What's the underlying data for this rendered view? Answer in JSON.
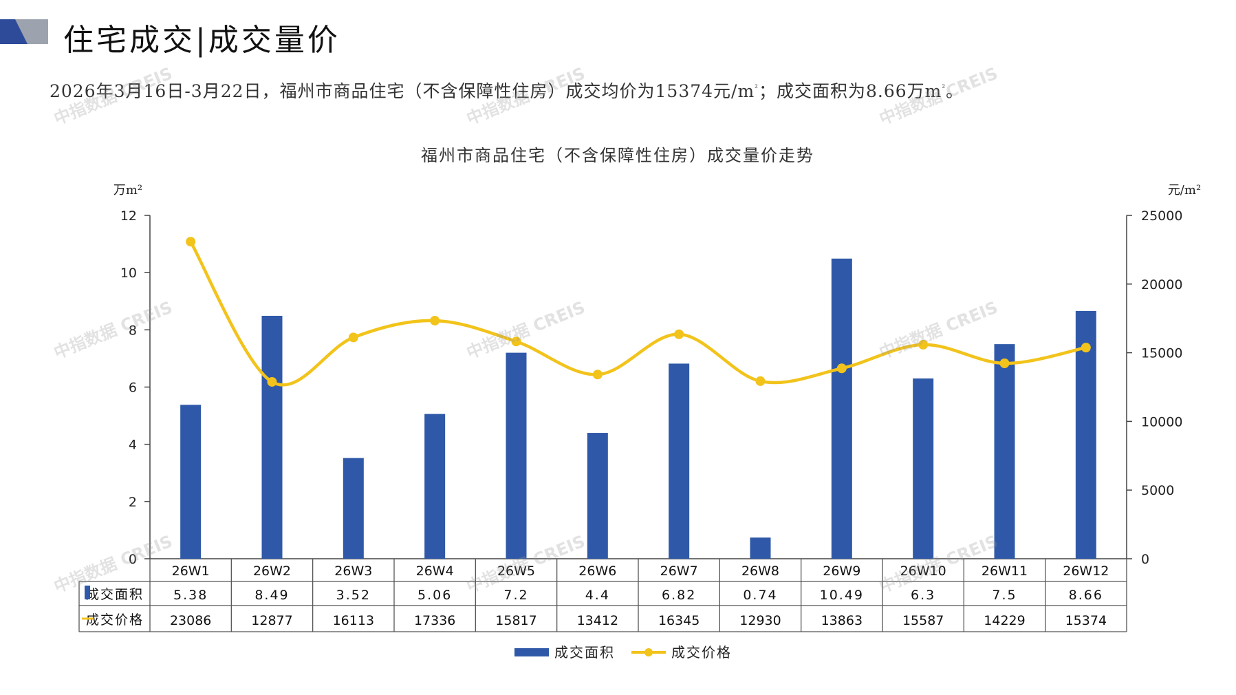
{
  "page": {
    "title": "住宅成交|成交量价",
    "summary": {
      "pre": "2026年3月16日-3月22日，福州市商品住宅（不含保障性住房）成交均价为15374元/m",
      "mid": "；成交面积为8.66万m",
      "post": "。",
      "sup": "²"
    },
    "watermark": "中指数据 CREIS"
  },
  "colors": {
    "bar": "#2F59A8",
    "line": "#F2C31B",
    "logo_dark": "#2E4B9A",
    "logo_gray": "#9DA3AE"
  },
  "chart_data": {
    "type": "bar",
    "title": "福州市商品住宅（不含保障性住房）成交量价走势",
    "categories": [
      "26W1",
      "26W2",
      "26W3",
      "26W4",
      "26W5",
      "26W6",
      "26W7",
      "26W8",
      "26W9",
      "26W10",
      "26W11",
      "26W12"
    ],
    "series": [
      {
        "name": "成交面积",
        "type": "bar",
        "axis": "left",
        "values": [
          5.38,
          8.49,
          3.52,
          5.06,
          7.2,
          4.4,
          6.82,
          0.74,
          10.49,
          6.3,
          7.5,
          8.66
        ],
        "labels": [
          "5.38",
          "8.49",
          "3.52",
          "5.06",
          "7.2",
          "4.4",
          "6.82",
          "0.74",
          "10.49",
          "6.3",
          "7.5",
          "8.66"
        ]
      },
      {
        "name": "成交价格",
        "type": "line",
        "axis": "right",
        "smooth": true,
        "values": [
          23086,
          12877,
          16113,
          17336,
          15817,
          13412,
          16345,
          12930,
          13863,
          15587,
          14229,
          15374
        ],
        "labels": [
          "23086",
          "12877",
          "16113",
          "17336",
          "15817",
          "13412",
          "16345",
          "12930",
          "13863",
          "15587",
          "14229",
          "15374"
        ]
      }
    ],
    "y_left": {
      "unit": "万m²",
      "min": 0,
      "max": 12,
      "ticks": [
        "0",
        "2",
        "4",
        "6",
        "8",
        "10",
        "12"
      ]
    },
    "y_right": {
      "unit": "元/m²",
      "min": 0,
      "max": 25000,
      "ticks": [
        "0",
        "5000",
        "10000",
        "15000",
        "20000",
        "25000"
      ]
    },
    "data_table": true,
    "legend": {
      "position": "bottom"
    },
    "grid": false
  }
}
